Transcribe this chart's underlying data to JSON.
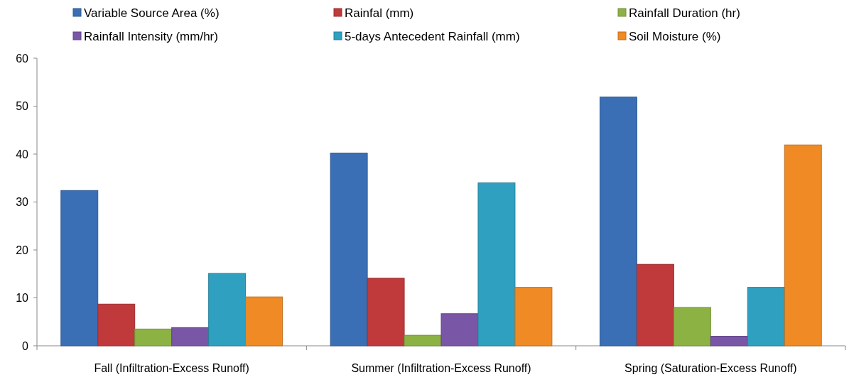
{
  "chart_data": {
    "type": "bar",
    "categories": [
      "Fall (Infiltration-Excess Runoff)",
      "Summer (Infiltration-Excess Runoff)",
      "Spring (Saturation-Excess Runoff)"
    ],
    "series": [
      {
        "name": "Variable Source Area (%)",
        "color": "#3a6fb5",
        "values": [
          32.4,
          40.2,
          51.9
        ]
      },
      {
        "name": "Rainfal (mm)",
        "color": "#c0393b",
        "values": [
          8.7,
          14.1,
          17.0
        ]
      },
      {
        "name": "Rainfall Duration (hr)",
        "color": "#8db244",
        "values": [
          3.5,
          2.2,
          8.0
        ]
      },
      {
        "name": "Rainfall Intensity (mm/hr)",
        "color": "#7a56a6",
        "values": [
          3.8,
          6.7,
          2.0
        ]
      },
      {
        "name": "5-days Antecedent Rainfall (mm)",
        "color": "#2fa0c0",
        "values": [
          15.1,
          34.0,
          12.2
        ]
      },
      {
        "name": "Soil Moisture (%)",
        "color": "#f08a24",
        "values": [
          10.2,
          12.2,
          41.9
        ]
      }
    ],
    "ylim": [
      0,
      60
    ],
    "yticks": [
      0,
      10,
      20,
      30,
      40,
      50,
      60
    ],
    "grid": false,
    "legend": "top"
  }
}
